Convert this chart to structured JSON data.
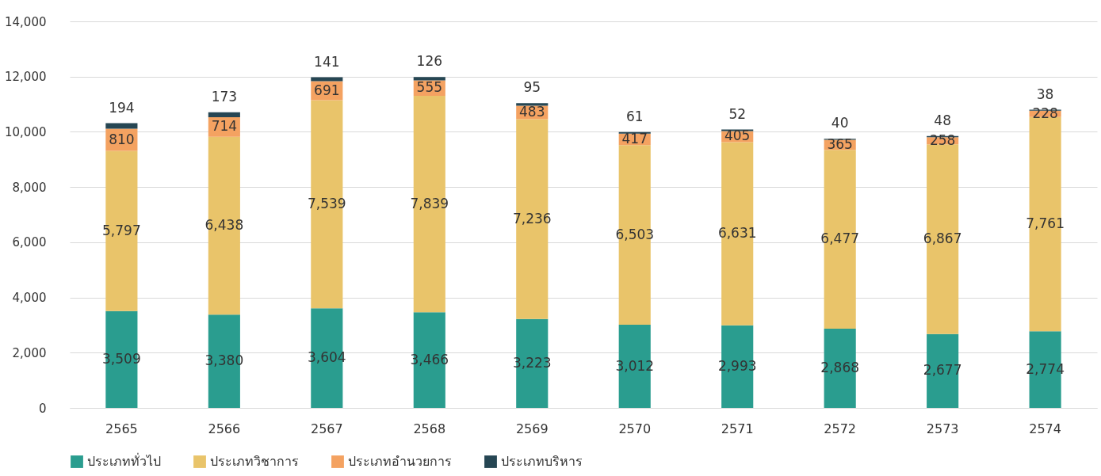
{
  "chart_data": {
    "type": "bar",
    "stacked": true,
    "categories": [
      "2565",
      "2566",
      "2567",
      "2568",
      "2569",
      "2570",
      "2571",
      "2572",
      "2573",
      "2574"
    ],
    "series": [
      {
        "name": "ประเภททั่วไป",
        "color": "#2a9d8f",
        "values": [
          3509,
          3380,
          3604,
          3466,
          3223,
          3012,
          2993,
          2868,
          2677,
          2774
        ],
        "value_labels": [
          "3,509",
          "3,380",
          "3,604",
          "3,466",
          "3,223",
          "3,012",
          "2,993",
          "2,868",
          "2,677",
          "2,774"
        ]
      },
      {
        "name": "ประเภทวิชาการ",
        "color": "#e9c46a",
        "values": [
          5797,
          6438,
          7539,
          7839,
          7236,
          6503,
          6631,
          6477,
          6867,
          7761
        ],
        "value_labels": [
          "5,797",
          "6,438",
          "7,539",
          "7,839",
          "7,236",
          "6,503",
          "6,631",
          "6,477",
          "6,867",
          "7,761"
        ]
      },
      {
        "name": "ประเภทอำนวยการ",
        "color": "#f4a261",
        "values": [
          810,
          714,
          691,
          555,
          483,
          417,
          405,
          365,
          258,
          228
        ],
        "value_labels": [
          "810",
          "714",
          "691",
          "555",
          "483",
          "417",
          "405",
          "365",
          "258",
          "228"
        ]
      },
      {
        "name": "ประเภทบริหาร",
        "color": "#264653",
        "values": [
          194,
          173,
          141,
          126,
          95,
          61,
          52,
          40,
          48,
          38
        ],
        "value_labels": [
          "194",
          "173",
          "141",
          "126",
          "95",
          "61",
          "52",
          "40",
          "48",
          "38"
        ]
      }
    ],
    "ylim": [
      0,
      14000
    ],
    "yticks": [
      0,
      {
        "value": 2000,
        "label": "2,000"
      },
      {
        "value": 4000,
        "label": "4,000"
      },
      {
        "value": 6000,
        "label": "6,000"
      },
      {
        "value": 8000,
        "label": "8,000"
      },
      {
        "value": 10000,
        "label": "10,000"
      },
      {
        "value": 12000,
        "label": "12,000"
      },
      {
        "value": 14000,
        "label": "14,000"
      }
    ],
    "grid": "y",
    "legend": "bottom"
  }
}
